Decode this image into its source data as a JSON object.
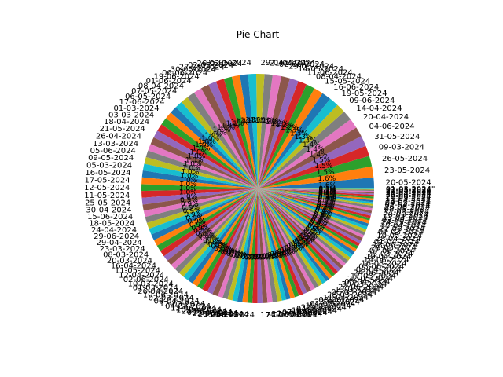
{
  "chart_data": {
    "type": "pie",
    "title": "Pie Chart",
    "xlabel": "",
    "ylabel": "",
    "grid": false,
    "legend": "none",
    "start_angle_deg": 0,
    "direction": "counterclockwise",
    "autopct_format": "%.1f%%",
    "colors": [
      "#1f77b4",
      "#ff7f0e",
      "#2ca02c",
      "#d62728",
      "#9467bd",
      "#8c564b",
      "#e377c2",
      "#7f7f7f",
      "#bcbd22",
      "#17becf"
    ],
    "slices": [
      {
        "label": "20-05-2024",
        "value": 1.8
      },
      {
        "label": "23-05-2024",
        "value": 1.8
      },
      {
        "label": "26-05-2024",
        "value": 1.7
      },
      {
        "label": "09-03-2024",
        "value": 1.7
      },
      {
        "label": "31-05-2024",
        "value": 1.7
      },
      {
        "label": "04-06-2024",
        "value": 1.6
      },
      {
        "label": "20-04-2024",
        "value": 1.6
      },
      {
        "label": "14-04-2024",
        "value": 1.6
      },
      {
        "label": "09-06-2024",
        "value": 1.5
      },
      {
        "label": "19-05-2024",
        "value": 1.5
      },
      {
        "label": "16-06-2024",
        "value": 1.5
      },
      {
        "label": "15-05-2024",
        "value": 1.5
      },
      {
        "label": "08-04-2024",
        "value": 1.4
      },
      {
        "label": "11-06-2024",
        "value": 1.4
      },
      {
        "label": "14-05-2024",
        "value": 1.4
      },
      {
        "label": "29-05-2024",
        "value": 1.4
      },
      {
        "label": "02-06-2024",
        "value": 1.4
      },
      {
        "label": "21-04-2024",
        "value": 1.3
      },
      {
        "label": "29-04-2024",
        "value": 1.3
      },
      {
        "label": "05-05-2024",
        "value": 1.3
      },
      {
        "label": "26-03-2024",
        "value": 1.3
      },
      {
        "label": "02-05-2024",
        "value": 1.3
      },
      {
        "label": "27-05-2024",
        "value": 1.3
      },
      {
        "label": "30-05-2024",
        "value": 1.3
      },
      {
        "label": "06-06-2024",
        "value": 1.3
      },
      {
        "label": "19-06-2024",
        "value": 1.3
      },
      {
        "label": "01-06-2024",
        "value": 1.3
      },
      {
        "label": "08-04-2024",
        "value": 1.3
      },
      {
        "label": "07-05-2024",
        "value": 1.2
      },
      {
        "label": "06-05-2024",
        "value": 1.2
      },
      {
        "label": "17-06-2024",
        "value": 1.2
      },
      {
        "label": "01-03-2024",
        "value": 1.2
      },
      {
        "label": "03-03-2024",
        "value": 1.2
      },
      {
        "label": "18-04-2024",
        "value": 1.2
      },
      {
        "label": "21-05-2024",
        "value": 1.2
      },
      {
        "label": "26-04-2024",
        "value": 1.2
      },
      {
        "label": "13-03-2024",
        "value": 1.1
      },
      {
        "label": "05-06-2024",
        "value": 1.1
      },
      {
        "label": "09-05-2024",
        "value": 1.1
      },
      {
        "label": "05-03-2024",
        "value": 1.1
      },
      {
        "label": "16-05-2024",
        "value": 1.1
      },
      {
        "label": "17-05-2024",
        "value": 1.1
      },
      {
        "label": "12-05-2024",
        "value": 1.1
      },
      {
        "label": "11-05-2024",
        "value": 1.1
      },
      {
        "label": "25-05-2024",
        "value": 1.1
      },
      {
        "label": "30-04-2024",
        "value": 1.0
      },
      {
        "label": "15-06-2024",
        "value": 1.0
      },
      {
        "label": "18-05-2024",
        "value": 1.0
      },
      {
        "label": "24-04-2024",
        "value": 1.0
      },
      {
        "label": "29-06-2024",
        "value": 1.0
      },
      {
        "label": "29-04-2024",
        "value": 1.0
      },
      {
        "label": "23-03-2024",
        "value": 1.0
      },
      {
        "label": "08-03-2024",
        "value": 1.0
      },
      {
        "label": "20-03-2024",
        "value": 1.0
      },
      {
        "label": "16-04-2024",
        "value": 0.9
      },
      {
        "label": "11-05-2024",
        "value": 0.9
      },
      {
        "label": "12-04-2024",
        "value": 0.9
      },
      {
        "label": "02-06-2024",
        "value": 0.9
      },
      {
        "label": "10-03-2024",
        "value": 0.9
      },
      {
        "label": "01-03-2024",
        "value": 0.9
      },
      {
        "label": "26-04-2024",
        "value": 0.9
      },
      {
        "label": "10-06-2024",
        "value": 0.9
      },
      {
        "label": "02-03-2024",
        "value": 0.9
      },
      {
        "label": "06-04-2024",
        "value": 0.9
      },
      {
        "label": "12-03-2024",
        "value": 0.9
      },
      {
        "label": "04-04-2024",
        "value": 0.9
      },
      {
        "label": "12-06-2024",
        "value": 0.8
      },
      {
        "label": "10-04-2024",
        "value": 0.8
      },
      {
        "label": "24-03-2024",
        "value": 0.8
      },
      {
        "label": "03-04-2024",
        "value": 0.8
      },
      {
        "label": "22-03-2024",
        "value": 0.8
      },
      {
        "label": "28-05-2024",
        "value": 0.8
      },
      {
        "label": "13-06-2024",
        "value": 0.8
      },
      {
        "label": "14-03-2024",
        "value": 0.8
      },
      {
        "label": "17-04-2024",
        "value": 0.8
      },
      {
        "label": "25-06-2024",
        "value": 0.8
      },
      {
        "label": "27-03-2024",
        "value": 0.8
      },
      {
        "label": "19-03-2024",
        "value": 0.8
      },
      {
        "label": "07-04-2024",
        "value": 0.7
      },
      {
        "label": "21-06-2024",
        "value": 0.7
      },
      {
        "label": "18-03-2024",
        "value": 0.7
      },
      {
        "label": "04-05-2024",
        "value": 0.7
      },
      {
        "label": "22-04-2024",
        "value": 0.7
      },
      {
        "label": "15-03-2024",
        "value": 0.7
      },
      {
        "label": "01-05-2024",
        "value": 0.7
      },
      {
        "label": "23-06-2024",
        "value": 0.7
      },
      {
        "label": "08-06-2024",
        "value": 0.7
      },
      {
        "label": "11-04-2024",
        "value": 0.7
      },
      {
        "label": "28-03-2024",
        "value": 0.7
      },
      {
        "label": "06-03-2024",
        "value": 0.7
      },
      {
        "label": "13-05-2024",
        "value": 0.6
      },
      {
        "label": "27-06-2024",
        "value": 0.6
      },
      {
        "label": "30-03-2024",
        "value": 0.6
      },
      {
        "label": "05-04-2024",
        "value": 0.6
      },
      {
        "label": "22-05-2024",
        "value": 0.6
      },
      {
        "label": "17-03-2024",
        "value": 0.6
      },
      {
        "label": "24-06-2024",
        "value": 0.6
      },
      {
        "label": "09-04-2024",
        "value": 0.6
      },
      {
        "label": "03-06-2024",
        "value": 0.6
      },
      {
        "label": "16-03-2024",
        "value": 0.6
      },
      {
        "label": "14-06-2024",
        "value": 0.6
      },
      {
        "label": "19-04-2024",
        "value": 0.5
      },
      {
        "label": "25-03-2024",
        "value": 0.5
      },
      {
        "label": "07-06-2024",
        "value": 0.5
      },
      {
        "label": "29-03-2024",
        "value": 0.5
      },
      {
        "label": "18-06-2024",
        "value": 0.5
      },
      {
        "label": "01-04-2024",
        "value": 0.5
      },
      {
        "label": "28-04-2024",
        "value": 0.5
      },
      {
        "label": "10-05-2024",
        "value": 0.5
      },
      {
        "label": "07-03-2024",
        "value": 0.5
      },
      {
        "label": "22-06-2024",
        "value": 0.5
      },
      {
        "label": "15-04-2024",
        "value": 0.5
      },
      {
        "label": "24-05-2024",
        "value": 0.4
      },
      {
        "label": "03-05-2024",
        "value": 0.4
      },
      {
        "label": "13-04-2024",
        "value": 0.4
      },
      {
        "label": "20-06-2024",
        "value": 0.4
      },
      {
        "label": "31-03-2024",
        "value": 0.4
      },
      {
        "label": "08-05-2024",
        "value": 0.4
      },
      {
        "label": "26-06-2024",
        "value": 0.3
      },
      {
        "label": "02-04-2024",
        "value": 0.3
      },
      {
        "label": "04-03-2024",
        "value": 0.3
      },
      {
        "label": "23-04-2024",
        "value": 0.3
      },
      {
        "label": "11-03-2024",
        "value": 0.3
      },
      {
        "label": "28-06-2024",
        "value": 0.3
      },
      {
        "label": "30-06-2024",
        "value": 0.2
      },
      {
        "label": "25-04-2024",
        "value": 0.2
      },
      {
        "label": "21-03-2024",
        "value": 0.2
      },
      {
        "label": "27-04-2024",
        "value": 0.2
      },
      {
        "label": "12-05-2024",
        "value": 0.1
      },
      {
        "label": "01-03-2024\"",
        "value": 0.1
      }
    ]
  }
}
